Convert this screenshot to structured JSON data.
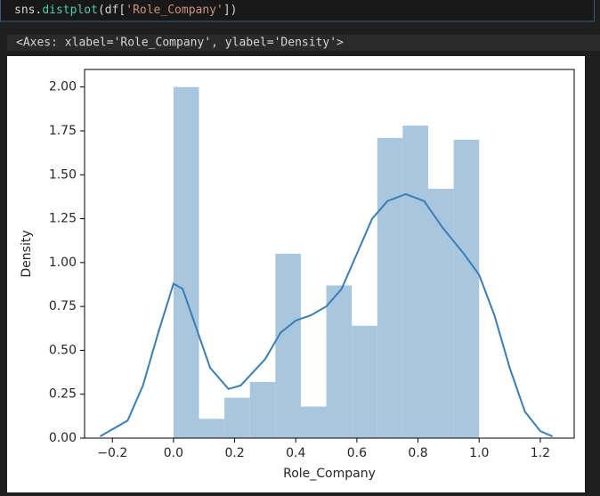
{
  "cell": {
    "code_parts": [
      "sns.",
      "distplot",
      "(df[",
      "'Role_Company'",
      "])"
    ],
    "output": "<Axes: xlabel='Role_Company', ylabel='Density'>"
  },
  "chart_data": {
    "type": "histogram",
    "xlabel": "Role_Company",
    "ylabel": "Density",
    "bins": [
      0,
      0.0833,
      0.1667,
      0.25,
      0.3333,
      0.4167,
      0.5,
      0.5833,
      0.6667,
      0.75,
      0.8333,
      0.9167,
      1.0
    ],
    "values": [
      2.0,
      0.11,
      0.23,
      0.32,
      1.05,
      0.18,
      0.87,
      0.64,
      1.71,
      1.78,
      1.42,
      1.7
    ],
    "color": "#a8c6de",
    "kde": {
      "color": "#3b7db5",
      "x": [
        -0.24,
        -0.15,
        -0.1,
        -0.05,
        0.0,
        0.03,
        0.08,
        0.12,
        0.18,
        0.22,
        0.3,
        0.35,
        0.4,
        0.45,
        0.5,
        0.55,
        0.6,
        0.65,
        0.7,
        0.76,
        0.82,
        0.88,
        0.95,
        1.0,
        1.05,
        1.1,
        1.15,
        1.2,
        1.24
      ],
      "values": [
        0.01,
        0.1,
        0.3,
        0.6,
        0.88,
        0.85,
        0.6,
        0.4,
        0.28,
        0.3,
        0.45,
        0.6,
        0.67,
        0.7,
        0.75,
        0.85,
        1.05,
        1.25,
        1.35,
        1.39,
        1.35,
        1.2,
        1.05,
        0.93,
        0.7,
        0.4,
        0.15,
        0.04,
        0.01
      ]
    },
    "xlim": [
      -0.291,
      1.311
    ],
    "ylim": [
      0,
      2.1
    ],
    "xticks": [
      {
        "value": -0.2,
        "label": "−0.2"
      },
      {
        "value": 0.0,
        "label": "0.0"
      },
      0.2,
      0.4,
      0.6,
      0.8,
      {
        "value": 1.0,
        "label": "1.0"
      },
      1.2
    ],
    "yticks": [
      {
        "value": 0,
        "label": "0.00"
      },
      {
        "value": 0.25,
        "label": "0.25"
      },
      {
        "value": 0.5,
        "label": "0.50"
      },
      {
        "value": 0.75,
        "label": "0.75"
      },
      {
        "value": 1.0,
        "label": "1.00"
      },
      {
        "value": 1.25,
        "label": "1.25"
      },
      {
        "value": 1.5,
        "label": "1.50"
      },
      {
        "value": 1.75,
        "label": "1.75"
      },
      {
        "value": 2.0,
        "label": "2.00"
      }
    ]
  }
}
